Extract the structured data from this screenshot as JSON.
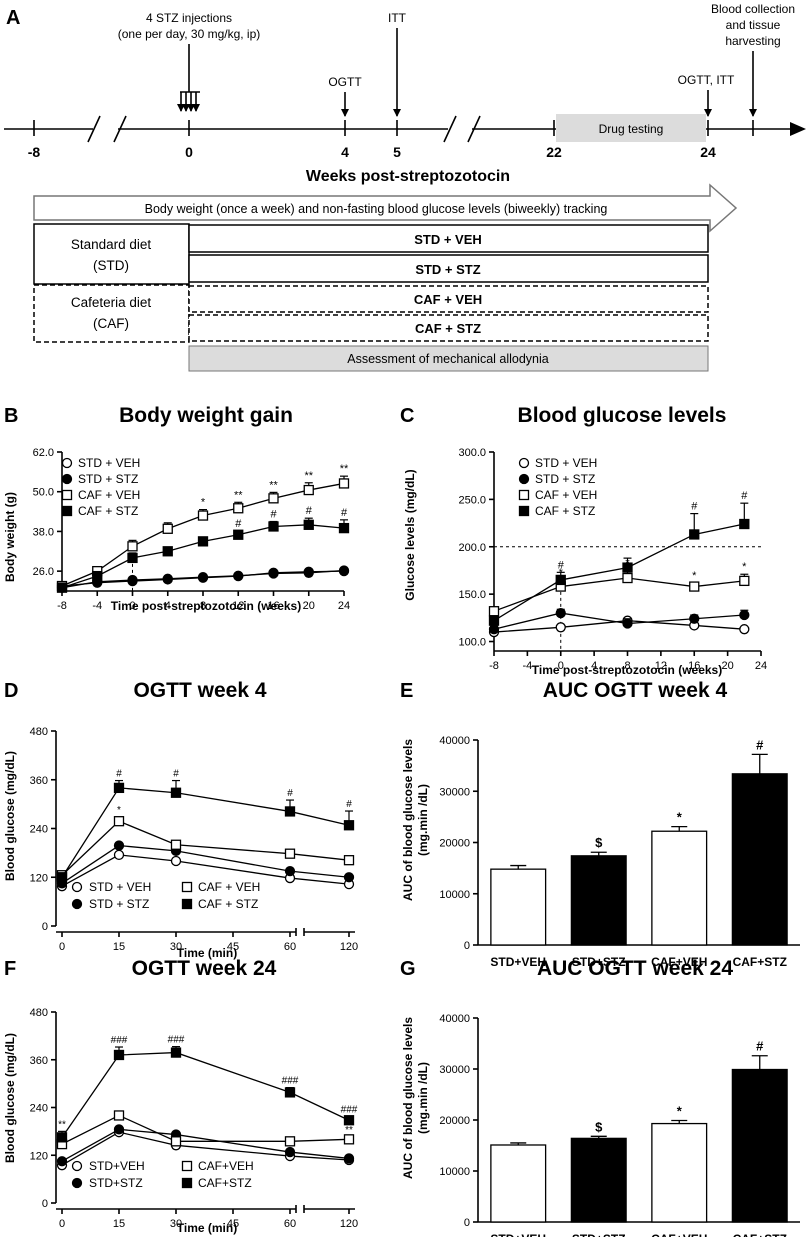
{
  "panel_A": {
    "letter": "A",
    "events": [
      {
        "label": "4 STZ injections",
        "label2": "(one per day, 30 mg/kg, ip)",
        "week": 0
      },
      {
        "label": "OGTT",
        "week": 4
      },
      {
        "label": "ITT",
        "week": 5
      },
      {
        "label": "OGTT, ITT",
        "week": 24
      },
      {
        "label": "Blood collection",
        "label2": "and tissue",
        "label3": "harvesting",
        "week": 25
      }
    ],
    "ticks": [
      "-8",
      "0",
      "4",
      "5",
      "22",
      "24"
    ],
    "drug_testing": "Drug testing",
    "axis_title": "Weeks post-streptozotocin",
    "tracking": "Body weight (once a week) and non-fasting blood glucose levels (biweekly) tracking",
    "std_diet": "Standard diet",
    "std_abbr": "(STD)",
    "caf_diet": "Cafeteria diet",
    "caf_abbr": "(CAF)",
    "groups": [
      "STD + VEH",
      "STD + STZ",
      "CAF + VEH",
      "CAF + STZ"
    ],
    "allodynia": "Assessment of mechanical allodynia"
  },
  "chart_data": [
    {
      "id": "B",
      "type": "line",
      "letter": "B",
      "title": "Body weight gain",
      "xlabel": "Time post-streptozotocin (weeks)",
      "ylabel": "Body weight (g)",
      "xlim": [
        -8,
        24
      ],
      "ylim": [
        20,
        62
      ],
      "xticks": [
        "-8",
        "-4",
        "0",
        "4",
        "8",
        "12",
        "16",
        "20",
        "24"
      ],
      "yticks": [
        "26.0",
        "38.0",
        "50.0",
        "62.0"
      ],
      "x": [
        -8,
        -4,
        0,
        4,
        8,
        12,
        16,
        20,
        24
      ],
      "legend": "top-left",
      "series": [
        {
          "name": "STD + VEH",
          "marker": "circle-open",
          "values": [
            21.5,
            22.5,
            23.0,
            23.5,
            24.0,
            24.5,
            25.5,
            25.8,
            26.0
          ]
        },
        {
          "name": "STD + STZ",
          "marker": "circle-filled",
          "values": [
            21.0,
            22.8,
            23.3,
            23.7,
            24.2,
            24.6,
            25.3,
            25.5,
            26.2
          ]
        },
        {
          "name": "CAF + VEH",
          "marker": "square-open",
          "values": [
            21.5,
            26.0,
            33.5,
            38.8,
            42.8,
            45.0,
            48.0,
            50.5,
            52.5
          ],
          "errors": [
            0.6,
            1.0,
            1.8,
            1.8,
            1.8,
            1.8,
            1.8,
            2.2,
            2.2
          ],
          "annotations": [
            "",
            "",
            "",
            "",
            "*",
            "**",
            "**",
            "**",
            "**"
          ]
        },
        {
          "name": "CAF + STZ",
          "marker": "square-filled",
          "values": [
            21.0,
            24.5,
            30.0,
            32.0,
            35.0,
            37.0,
            39.5,
            40.0,
            39.0
          ],
          "errors": [
            0.5,
            1.0,
            1.5,
            1.2,
            1.2,
            1.2,
            1.5,
            2.0,
            2.5
          ],
          "annotations": [
            "",
            "",
            "",
            "",
            "",
            "#",
            "#",
            "#",
            "#"
          ]
        }
      ]
    },
    {
      "id": "C",
      "type": "line",
      "letter": "C",
      "title": "Blood glucose levels",
      "xlabel": "Time post-streptozotocin (weeks)",
      "ylabel": "Glucose levels (mg/dL)",
      "xlim": [
        -8,
        24
      ],
      "ylim": [
        90,
        300
      ],
      "xticks": [
        "-8",
        "-4",
        "0",
        "4",
        "8",
        "12",
        "16",
        "20",
        "24"
      ],
      "yticks": [
        "100.0",
        "150.0",
        "200.0",
        "250.0",
        "300.0"
      ],
      "x": [
        -8,
        0,
        8,
        16,
        22
      ],
      "reference_line": 200,
      "legend": "top-left",
      "series": [
        {
          "name": "STD + VEH",
          "marker": "circle-open",
          "values": [
            110,
            115,
            122,
            117,
            113
          ]
        },
        {
          "name": "STD + STZ",
          "marker": "circle-filled",
          "values": [
            113,
            130,
            119,
            124,
            128
          ],
          "errors": [
            3,
            4,
            5,
            4,
            5
          ]
        },
        {
          "name": "CAF + VEH",
          "marker": "square-open",
          "values": [
            132,
            158,
            167,
            158,
            164
          ],
          "errors": [
            4,
            7,
            8,
            4,
            7
          ],
          "annotations": [
            "",
            "*",
            "*",
            "*",
            "*"
          ]
        },
        {
          "name": "CAF + STZ",
          "marker": "square-filled",
          "values": [
            122,
            165,
            178,
            213,
            224
          ],
          "errors": [
            5,
            8,
            10,
            22,
            22
          ],
          "annotations": [
            "",
            "#",
            "",
            "#",
            "#"
          ]
        }
      ]
    },
    {
      "id": "D",
      "type": "line",
      "letter": "D",
      "title": "OGTT week 4",
      "xlabel": "Time (min)",
      "ylabel": "Blood glucose (mg/dL)",
      "ylim": [
        0,
        480
      ],
      "xticks": [
        "0",
        "15",
        "30",
        "45",
        "60",
        "120"
      ],
      "yticks": [
        "0",
        "120",
        "240",
        "360",
        "480"
      ],
      "x": [
        0,
        15,
        30,
        60,
        120
      ],
      "legend": "bottom",
      "series": [
        {
          "name": "STD + VEH",
          "marker": "circle-open",
          "values": [
            98,
            175,
            160,
            118,
            103
          ]
        },
        {
          "name": "STD + STZ",
          "marker": "circle-filled",
          "values": [
            105,
            198,
            185,
            135,
            120
          ]
        },
        {
          "name": "CAF + VEH",
          "marker": "square-open",
          "values": [
            125,
            258,
            200,
            178,
            162
          ],
          "errors": [
            5,
            10,
            8,
            6,
            6
          ],
          "annotations": [
            "",
            "*",
            "",
            "",
            ""
          ]
        },
        {
          "name": "CAF + STZ",
          "marker": "square-filled",
          "values": [
            120,
            340,
            328,
            282,
            248
          ],
          "errors": [
            10,
            18,
            30,
            28,
            35
          ],
          "annotations": [
            "",
            "#",
            "#",
            "#",
            "#"
          ]
        }
      ]
    },
    {
      "id": "E",
      "type": "bar",
      "letter": "E",
      "title": "AUC OGTT week 4",
      "ylabel": "AUC of blood glucose levels",
      "ylabel2": "(mg.min /dL)",
      "ylim": [
        0,
        40000
      ],
      "yticks": [
        "0",
        "10000",
        "20000",
        "30000",
        "40000"
      ],
      "categories": [
        "STD+VEH",
        "STD+STZ",
        "CAF+VEH",
        "CAF+STZ"
      ],
      "values": [
        14800,
        17400,
        22200,
        33400
      ],
      "errors": [
        700,
        700,
        900,
        3800
      ],
      "fills": [
        "#ffffff",
        "#000000",
        "#ffffff",
        "#000000"
      ],
      "annotations": [
        "",
        "$",
        "*",
        "#"
      ]
    },
    {
      "id": "F",
      "type": "line",
      "letter": "F",
      "title": "OGTT week 24",
      "xlabel": "Time (min)",
      "ylabel": "Blood glucose (mg/dL)",
      "ylim": [
        0,
        480
      ],
      "xticks": [
        "0",
        "15",
        "30",
        "45",
        "60",
        "120"
      ],
      "yticks": [
        "0",
        "120",
        "240",
        "360",
        "480"
      ],
      "x": [
        0,
        15,
        30,
        60,
        120
      ],
      "legend": "bottom",
      "series": [
        {
          "name": "STD+VEH",
          "marker": "circle-open",
          "values": [
            95,
            178,
            145,
            118,
            108
          ]
        },
        {
          "name": "STD+STZ",
          "marker": "circle-filled",
          "values": [
            105,
            185,
            172,
            128,
            112
          ]
        },
        {
          "name": "CAF+VEH",
          "marker": "square-open",
          "values": [
            148,
            220,
            155,
            155,
            160
          ],
          "errors": [
            6,
            8,
            8,
            6,
            6
          ],
          "annotations": [
            "",
            "",
            "",
            "",
            "**"
          ]
        },
        {
          "name": "CAF+STZ",
          "marker": "square-filled",
          "values": [
            165,
            372,
            378,
            278,
            208
          ],
          "errors": [
            15,
            20,
            15,
            12,
            10
          ],
          "annotations": [
            "**",
            "###",
            "###",
            "###",
            "###"
          ]
        }
      ]
    },
    {
      "id": "G",
      "type": "bar",
      "letter": "G",
      "title": "AUC OGTT week 24",
      "ylabel": "AUC of blood glucose levels",
      "ylabel2": "(mg.min /dL)",
      "ylim": [
        0,
        40000
      ],
      "yticks": [
        "0",
        "10000",
        "20000",
        "30000",
        "40000"
      ],
      "categories": [
        "STD+VEH",
        "STD+STZ",
        "CAF+VEH",
        "CAF+STZ"
      ],
      "values": [
        15100,
        16400,
        19300,
        29900
      ],
      "errors": [
        400,
        400,
        600,
        2700
      ],
      "fills": [
        "#ffffff",
        "#000000",
        "#ffffff",
        "#000000"
      ],
      "annotations": [
        "",
        "$",
        "*",
        "#"
      ]
    }
  ]
}
